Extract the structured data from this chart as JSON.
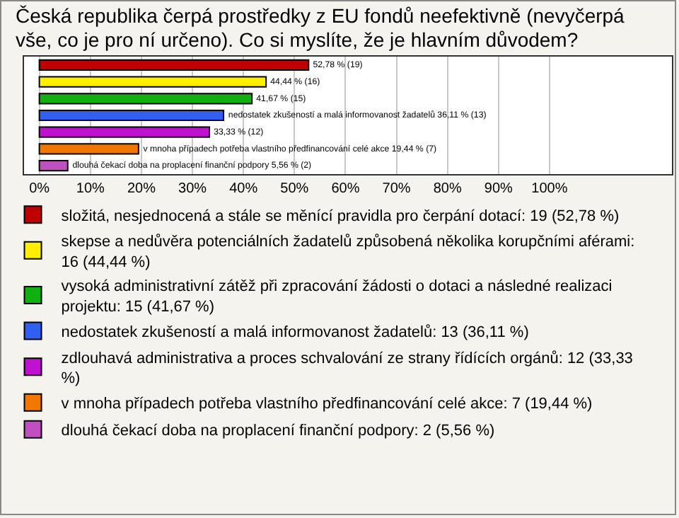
{
  "chart_data": {
    "type": "bar",
    "orientation": "horizontal",
    "title": "Česká republika čerpá prostředky z EU fondů neefektivně (nevyčerpá vše, co je pro ní určeno). Co si myslíte, že je hlavním důvodem?",
    "categories": [
      null,
      null,
      null,
      null,
      null,
      null,
      null
    ],
    "series": [
      {
        "name": "složitá, nesjednocená a stále se měnící pravidla pro čerpání dotací: 19 (52,78 %)",
        "color": "#c00000",
        "values": [
          52.78,
          null,
          null,
          null,
          null,
          null,
          null
        ],
        "value_labels": [
          "52,78 % (19)",
          null,
          null,
          null,
          null,
          null,
          null
        ]
      },
      {
        "name": "skepse a nedůvěra potenciálních žadatelů způsobená několika korupčními aférami: 16 (44,44 %)",
        "color": "#ffee00",
        "values": [
          null,
          44.44,
          null,
          null,
          null,
          null,
          null
        ],
        "value_labels": [
          null,
          "44,44 % (16)",
          null,
          null,
          null,
          null,
          null
        ]
      },
      {
        "name": "vysoká administrativní zátěž při zpracování žádosti o dotaci a následné realizaci projektu: 15 (41,67 %)",
        "color": "#10b010",
        "values": [
          null,
          null,
          41.67,
          null,
          null,
          null,
          null
        ],
        "value_labels": [
          null,
          null,
          "41,67 % (15)",
          null,
          null,
          null,
          null
        ]
      },
      {
        "name": "nedostatek zkušeností a malá informovanost žadatelů: 13 (36,11 %)",
        "color": "#3060f0",
        "values": [
          null,
          null,
          null,
          36.11,
          null,
          null,
          null
        ],
        "value_labels": [
          null,
          null,
          null,
          "nedostatek zkušeností a malá informovanost žadatelů 36,11 % (13)",
          null,
          null,
          null
        ]
      },
      {
        "name": "zdlouhavá administrativa a proces schvalování ze strany řídících orgánů: 12 (33,33 %)",
        "color": "#c010d0",
        "values": [
          null,
          null,
          null,
          null,
          33.33,
          null,
          null
        ],
        "value_labels": [
          null,
          null,
          null,
          null,
          "33,33 % (12)",
          null,
          null
        ]
      },
      {
        "name": "v mnoha případech potřeba vlastního předfinancování celé akce: 7 (19,44 %)",
        "color": "#f07800",
        "values": [
          null,
          null,
          null,
          null,
          null,
          19.44,
          null
        ],
        "value_labels": [
          null,
          null,
          null,
          null,
          null,
          "v mnoha případech potřeba vlastního předfinancování celé akce 19,44 % (7)",
          null
        ]
      },
      {
        "name": "dlouhá čekací doba na proplacení finanční podpory: 2 (5,56 %)",
        "color": "#c050c0",
        "values": [
          null,
          null,
          null,
          null,
          null,
          null,
          5.56
        ],
        "value_labels": [
          null,
          null,
          null,
          null,
          null,
          null,
          "dlouhá čekací doba na proplacení finanční podpory 5,56 % (2)"
        ]
      }
    ],
    "xlim": [
      -3,
      124
    ],
    "xticks": [
      {
        "value": 0,
        "label": "0%"
      },
      {
        "value": 10,
        "label": "10%"
      },
      {
        "value": 20,
        "label": "20%"
      },
      {
        "value": 30,
        "label": "30%"
      },
      {
        "value": 40,
        "label": "40%"
      },
      {
        "value": 50,
        "label": "50%"
      },
      {
        "value": 60,
        "label": "60%"
      },
      {
        "value": 70,
        "label": "70%"
      },
      {
        "value": 80,
        "label": "80%"
      },
      {
        "value": 90,
        "label": "90%"
      },
      {
        "value": 100,
        "label": "100%"
      }
    ],
    "grid": "x",
    "legend": "bottom"
  }
}
